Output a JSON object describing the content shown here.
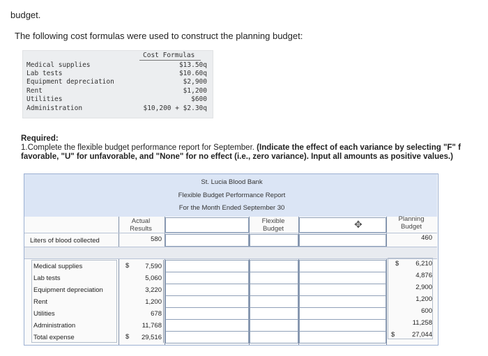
{
  "heading": "budget.",
  "intro": "The following cost formulas were used to construct the planning budget:",
  "formulas": {
    "header": "Cost Formulas",
    "rows": [
      {
        "label": "Medical supplies",
        "formula": "$13.50q"
      },
      {
        "label": "Lab tests",
        "formula": "$10.60q"
      },
      {
        "label": "Equipment depreciation",
        "formula": "$2,900"
      },
      {
        "label": "Rent",
        "formula": "$1,200"
      },
      {
        "label": "Utilities",
        "formula": "$600"
      },
      {
        "label": "Administration",
        "formula": "$10,200 + $2.30q"
      }
    ]
  },
  "required": {
    "title": "Required:",
    "line1_plain": "1.Complete the flexible budget performance report for September.",
    "line1_bold": "(Indicate the effect of each variance by selecting \"F\" f",
    "line2_bold": "favorable, \"U\" for unfavorable, and \"None\" for no effect (i.e., zero variance). Input all amounts as positive values.)"
  },
  "report": {
    "title1": "St. Lucia Blood Bank",
    "title2": "Flexible Budget Performance Report",
    "title3": "For the Month Ended September 30",
    "col_actual_1": "Actual",
    "col_actual_2": "Results",
    "col_flex_1": "Flexible",
    "col_flex_2": "Budget",
    "col_plan_1": "Planning",
    "col_plan_2": "Budget",
    "move_icon": "move-icon",
    "activity_label": "Liters of blood collected",
    "activity_actual": "580",
    "activity_planning": "460",
    "currency": "$",
    "rows": [
      {
        "label": "Medical supplies",
        "actual": "7,590",
        "planning": "6,210"
      },
      {
        "label": "Lab tests",
        "actual": "5,060",
        "planning": "4,876"
      },
      {
        "label": "Equipment depreciation",
        "actual": "3,220",
        "planning": "2,900"
      },
      {
        "label": "Rent",
        "actual": "1,200",
        "planning": "1,200"
      },
      {
        "label": "Utilities",
        "actual": "678",
        "planning": "600"
      },
      {
        "label": "Administration",
        "actual": "11,768",
        "planning": "11,258"
      },
      {
        "label": "Total expense",
        "actual": "29,516",
        "planning": "27,044"
      }
    ]
  }
}
